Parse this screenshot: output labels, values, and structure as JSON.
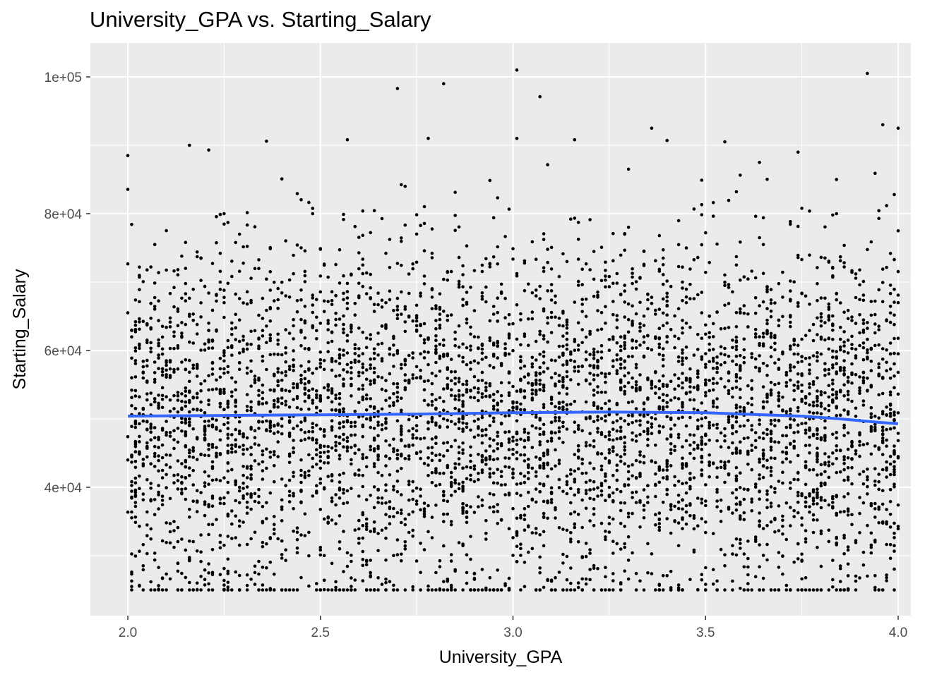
{
  "chart_data": {
    "type": "scatter",
    "title": "University_GPA vs. Starting_Salary",
    "xlabel": "University_GPA",
    "ylabel": "Starting_Salary",
    "xlim": [
      1.9,
      4.05
    ],
    "ylim": [
      21000,
      104500
    ],
    "x_ticks": [
      2.0,
      2.5,
      3.0,
      3.5,
      4.0
    ],
    "x_tick_labels": [
      "2.0",
      "2.5",
      "3.0",
      "3.5",
      "4.0"
    ],
    "y_ticks": [
      40000,
      60000,
      80000,
      100000
    ],
    "y_tick_labels": [
      "4e+04",
      "6e+04",
      "8e+04",
      "1e+05"
    ],
    "grid": true,
    "panel_background": "#ebebeb",
    "point_color": "#000000",
    "trend_color": "#3366ff",
    "points": {
      "count": 5000,
      "x_range": [
        2.0,
        4.0
      ],
      "y_floor": 25000,
      "y_typical": [
        25000,
        77000
      ],
      "notable": [
        {
          "x": 3.01,
          "y": 101000
        },
        {
          "x": 3.92,
          "y": 100500
        },
        {
          "x": 2.82,
          "y": 99000
        },
        {
          "x": 2.7,
          "y": 98300
        },
        {
          "x": 3.07,
          "y": 97100
        },
        {
          "x": 2.0,
          "y": 88500
        },
        {
          "x": 2.16,
          "y": 90000
        },
        {
          "x": 2.21,
          "y": 89300
        },
        {
          "x": 2.36,
          "y": 90600
        },
        {
          "x": 2.57,
          "y": 90800
        },
        {
          "x": 2.78,
          "y": 91000
        },
        {
          "x": 3.01,
          "y": 91000
        },
        {
          "x": 3.16,
          "y": 90800
        },
        {
          "x": 3.36,
          "y": 92500
        },
        {
          "x": 3.4,
          "y": 90700
        },
        {
          "x": 3.96,
          "y": 93000
        },
        {
          "x": 4.0,
          "y": 92500
        },
        {
          "x": 3.55,
          "y": 90500
        },
        {
          "x": 3.74,
          "y": 89000
        },
        {
          "x": 3.84,
          "y": 85000
        },
        {
          "x": 2.48,
          "y": 80000
        },
        {
          "x": 2.72,
          "y": 84000
        },
        {
          "x": 3.3,
          "y": 86500
        },
        {
          "x": 3.64,
          "y": 87500
        }
      ]
    },
    "smooth": {
      "method": "loess",
      "x": [
        2.0,
        2.25,
        2.5,
        2.75,
        3.0,
        3.25,
        3.5,
        3.6,
        3.75,
        3.85,
        3.95,
        4.0
      ],
      "y": [
        50400,
        50500,
        50600,
        50700,
        50900,
        51000,
        50900,
        50700,
        50400,
        50000,
        49500,
        49300
      ]
    }
  }
}
